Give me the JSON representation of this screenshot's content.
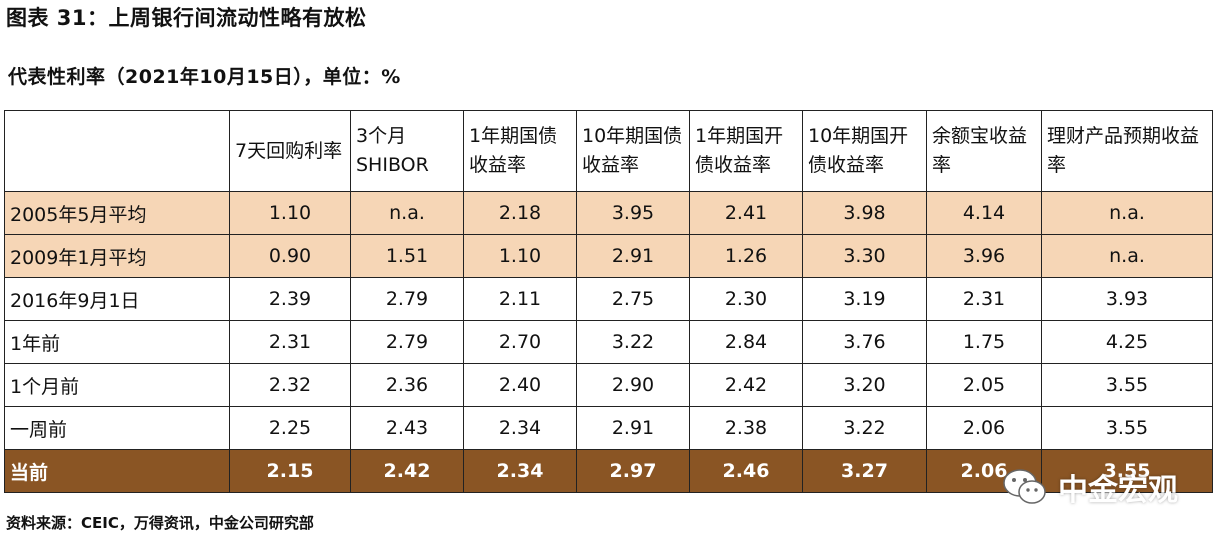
{
  "title": "图表 31：上周银行间流动性略有放松",
  "subtitle": "代表性利率（2021年10月15日），单位：%",
  "table": {
    "headers": [
      "",
      "7天回购利率",
      "3个月SHIBOR",
      "1年期国债收益率",
      "10年期国债收益率",
      "1年期国开债收益率",
      "10年期国开债收益率",
      "余额宝收益率",
      "理财产品预期收益率"
    ],
    "rows": [
      {
        "label": "2005年5月平均",
        "values": [
          "1.10",
          "n.a.",
          "2.18",
          "3.95",
          "2.41",
          "3.98",
          "4.14",
          "n.a."
        ]
      },
      {
        "label": "2009年1月平均",
        "values": [
          "0.90",
          "1.51",
          "1.10",
          "2.91",
          "1.26",
          "3.30",
          "3.96",
          "n.a."
        ]
      },
      {
        "label": "2016年9月1日",
        "values": [
          "2.39",
          "2.79",
          "2.11",
          "2.75",
          "2.30",
          "3.19",
          "2.31",
          "3.93"
        ]
      },
      {
        "label": "1年前",
        "values": [
          "2.31",
          "2.79",
          "2.70",
          "3.22",
          "2.84",
          "3.76",
          "1.75",
          "4.25"
        ]
      },
      {
        "label": "1个月前",
        "values": [
          "2.32",
          "2.36",
          "2.40",
          "2.90",
          "2.42",
          "3.20",
          "2.05",
          "3.55"
        ]
      },
      {
        "label": "一周前",
        "values": [
          "2.25",
          "2.43",
          "2.34",
          "2.91",
          "2.38",
          "3.22",
          "2.06",
          "3.55"
        ]
      },
      {
        "label": "当前",
        "values": [
          "2.15",
          "2.42",
          "2.34",
          "2.97",
          "2.46",
          "3.27",
          "2.06",
          "3.55"
        ]
      }
    ]
  },
  "source": "资料来源：CEIC，万得资讯，中金公司研究部",
  "watermark": {
    "text": "中金宏观",
    "icon": "wechat-icon"
  },
  "colors": {
    "highlight_row": "#f6d6b6",
    "current_row": "#8a5524"
  }
}
